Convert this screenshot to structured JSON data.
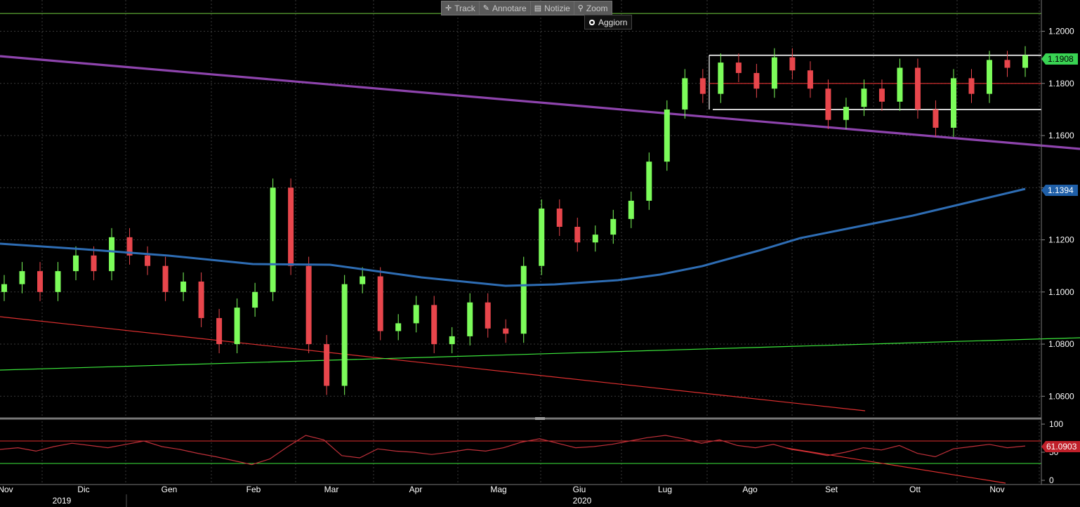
{
  "toolbar": {
    "track_label": "Track",
    "annotate_label": "Annotare",
    "news_label": "Notizie",
    "zoom_label": "Zoom",
    "refresh_label": "Aggiorn"
  },
  "colors": {
    "background": "#000000",
    "grid": "#3a3a3a",
    "axis_text": "#ffffff",
    "candle_up": "#7cfc5a",
    "candle_down": "#e8464c",
    "ma_line": "#2e6db4",
    "purple_trend": "#8e44ad",
    "red_trend": "#e03030",
    "green_trend": "#3ce83c",
    "rsi_line": "#c0303a",
    "label_green": "#39d353",
    "label_blue": "#1f5fa8",
    "label_red": "#c0202a"
  },
  "chart_data": [
    {
      "type": "candlestick",
      "x_labels": [
        "Nov",
        "Dic",
        "Gen",
        "Feb",
        "Mar",
        "Apr",
        "Mag",
        "Giu",
        "Lug",
        "Ago",
        "Set",
        "Ott",
        "Nov"
      ],
      "year_labels": [
        "2019",
        "2020"
      ],
      "y_ticks": [
        "1.2000",
        "1.1800",
        "1.1600",
        "1.1400",
        "1.1200",
        "1.1000",
        "1.0800",
        "1.0600"
      ],
      "ylim": [
        1.052,
        1.212
      ],
      "last_price_label": "1.1908",
      "ma_label": "1.1394",
      "candle_closes": [
        1.103,
        1.108,
        1.1,
        1.108,
        1.114,
        1.108,
        1.121,
        1.114,
        1.11,
        1.1,
        1.104,
        1.09,
        1.08,
        1.094,
        1.1,
        1.14,
        1.11,
        1.08,
        1.064,
        1.103,
        1.106,
        1.085,
        1.088,
        1.095,
        1.08,
        1.083,
        1.096,
        1.086,
        1.084,
        1.11,
        1.132,
        1.125,
        1.119,
        1.122,
        1.128,
        1.135,
        1.15,
        1.17,
        1.182,
        1.176,
        1.188,
        1.184,
        1.178,
        1.19,
        1.185,
        1.178,
        1.166,
        1.171,
        1.178,
        1.173,
        1.186,
        1.17,
        1.163,
        1.182,
        1.176,
        1.189,
        1.186,
        1.1908
      ],
      "horizontal_levels": [
        1.2068,
        1.1908,
        1.18,
        1.17
      ]
    },
    {
      "type": "line",
      "name": "RSI",
      "y_ticks": [
        "100",
        "50",
        "0"
      ],
      "ylim": [
        -5,
        105
      ],
      "last_value_label": "61.0903",
      "levels": [
        70,
        30
      ],
      "values": [
        55,
        58,
        52,
        60,
        66,
        62,
        58,
        64,
        70,
        60,
        55,
        48,
        42,
        35,
        28,
        38,
        60,
        80,
        72,
        44,
        40,
        56,
        52,
        50,
        46,
        50,
        55,
        52,
        58,
        68,
        74,
        66,
        58,
        60,
        64,
        70,
        76,
        80,
        74,
        66,
        72,
        62,
        58,
        64,
        55,
        50,
        44,
        50,
        58,
        54,
        62,
        48,
        42,
        56,
        60,
        64,
        58,
        61.09
      ]
    }
  ]
}
